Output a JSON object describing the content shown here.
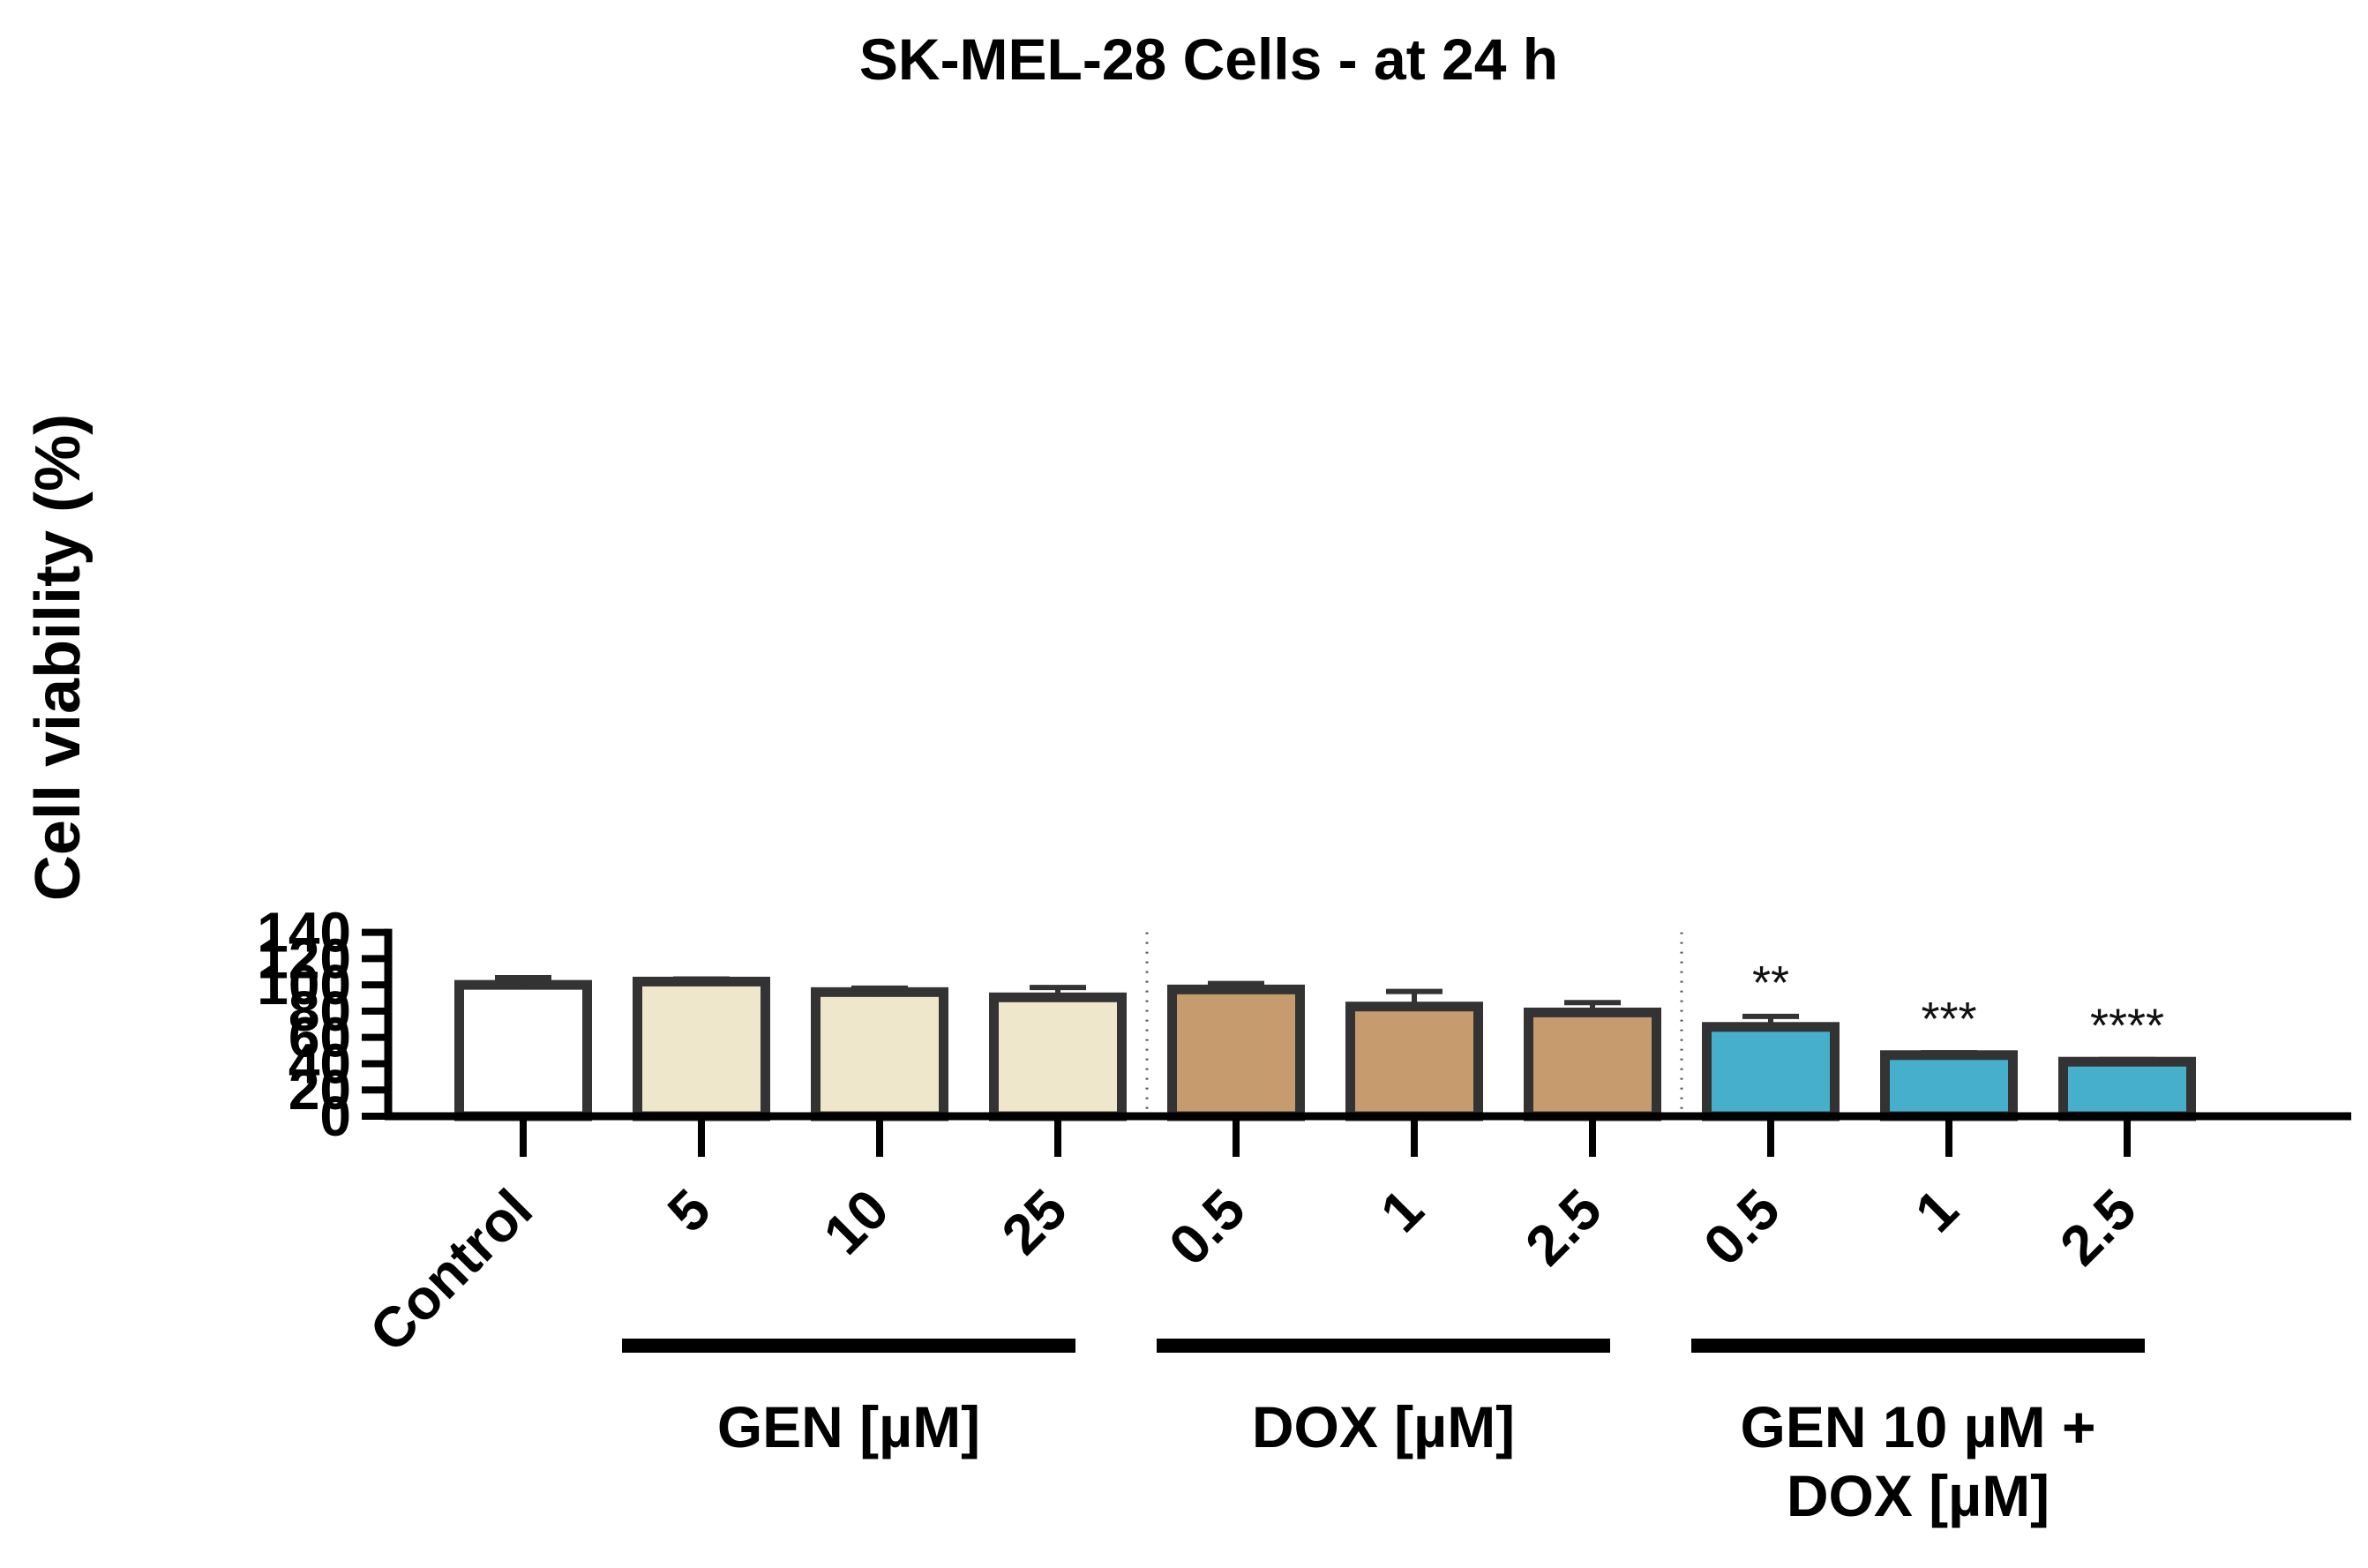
{
  "colors": {
    "control": "#ffffff",
    "gen": "#efe7cb",
    "dox": "#c69c6f",
    "combo": "#46b0cc",
    "stroke": "#333333",
    "axis": "#000000"
  },
  "chart_data": {
    "type": "bar",
    "title": "SK-MEL-28 Cells - at 24 h",
    "xlabel": "",
    "ylabel": "Cell viability (%)",
    "ylim": [
      0,
      140
    ],
    "yticks": [
      0,
      20,
      40,
      60,
      80,
      100,
      120,
      140
    ],
    "categories": [
      "Control",
      "5",
      "10",
      "25",
      "0.5",
      "1",
      "2.5",
      "0.5",
      "1",
      "2.5"
    ],
    "values": [
      100,
      102.5,
      94.5,
      90.5,
      96.5,
      83.5,
      79,
      68,
      46.5,
      41.5
    ],
    "errors": [
      5.5,
      2,
      3,
      7.5,
      4.5,
      11.5,
      7.5,
      8,
      1.8,
      1.7
    ],
    "groups": [
      "control",
      "gen",
      "gen",
      "gen",
      "dox",
      "dox",
      "dox",
      "combo",
      "combo",
      "combo"
    ],
    "significance": [
      "",
      "",
      "",
      "",
      "",
      "",
      "",
      "**",
      "***",
      "****"
    ],
    "group_labels": [
      {
        "lines": [
          "GEN [µM]"
        ],
        "from": 1,
        "to": 3
      },
      {
        "lines": [
          "DOX [µM]"
        ],
        "from": 4,
        "to": 6
      },
      {
        "lines": [
          "GEN 10 µM +",
          "DOX [µM]"
        ],
        "from": 7,
        "to": 9
      }
    ],
    "separators_after": [
      3,
      6
    ],
    "grid": false
  }
}
